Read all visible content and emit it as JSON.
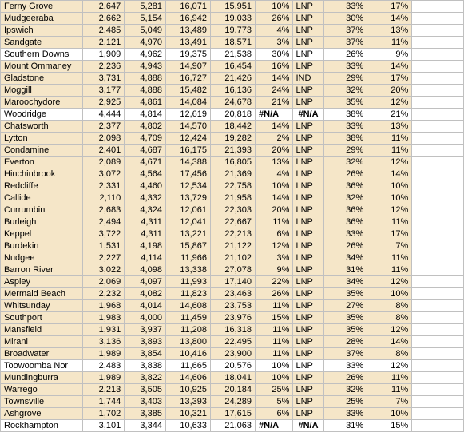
{
  "colors": {
    "beige": "#f5e6c8",
    "white": "#ffffff",
    "border": "#c0c0c0",
    "text": "#000000"
  },
  "columns": [
    "name",
    "v1",
    "v2",
    "v3",
    "v4",
    "pct1",
    "party",
    "pct2",
    "pct3"
  ],
  "col_align": [
    "left",
    "right",
    "right",
    "right",
    "right",
    "right",
    "left",
    "right",
    "right"
  ],
  "rows": [
    {
      "name": "Ferny Grove",
      "v1": "2,647",
      "v2": "5,281",
      "v3": "16,071",
      "v4": "15,951",
      "pct1": "10%",
      "party": "LNP",
      "pct2": "33%",
      "pct3": "17%",
      "cls": "beige"
    },
    {
      "name": "Mudgeeraba",
      "v1": "2,662",
      "v2": "5,154",
      "v3": "16,942",
      "v4": "19,033",
      "pct1": "26%",
      "party": "LNP",
      "pct2": "30%",
      "pct3": "14%",
      "cls": "beige"
    },
    {
      "name": "Ipswich",
      "v1": "2,485",
      "v2": "5,049",
      "v3": "13,489",
      "v4": "19,773",
      "pct1": "4%",
      "party": "LNP",
      "pct2": "37%",
      "pct3": "13%",
      "cls": "beige"
    },
    {
      "name": "Sandgate",
      "v1": "2,121",
      "v2": "4,970",
      "v3": "13,491",
      "v4": "18,571",
      "pct1": "3%",
      "party": "LNP",
      "pct2": "37%",
      "pct3": "11%",
      "cls": "beige"
    },
    {
      "name": "Southern Downs",
      "v1": "1,909",
      "v2": "4,962",
      "v3": "19,375",
      "v4": "21,538",
      "pct1": "30%",
      "party": "LNP",
      "pct2": "26%",
      "pct3": "9%",
      "cls": "white"
    },
    {
      "name": "Mount Ommaney",
      "v1": "2,236",
      "v2": "4,943",
      "v3": "14,907",
      "v4": "16,454",
      "pct1": "16%",
      "party": "LNP",
      "pct2": "33%",
      "pct3": "14%",
      "cls": "beige"
    },
    {
      "name": "Gladstone",
      "v1": "3,731",
      "v2": "4,888",
      "v3": "16,727",
      "v4": "21,426",
      "pct1": "14%",
      "party": "IND",
      "pct2": "29%",
      "pct3": "17%",
      "cls": "beige"
    },
    {
      "name": "Moggill",
      "v1": "3,177",
      "v2": "4,888",
      "v3": "15,482",
      "v4": "16,136",
      "pct1": "24%",
      "party": "LNP",
      "pct2": "32%",
      "pct3": "20%",
      "cls": "beige"
    },
    {
      "name": "Maroochydore",
      "v1": "2,925",
      "v2": "4,861",
      "v3": "14,084",
      "v4": "24,678",
      "pct1": "21%",
      "party": "LNP",
      "pct2": "35%",
      "pct3": "12%",
      "cls": "beige"
    },
    {
      "name": "Woodridge",
      "v1": "4,444",
      "v2": "4,814",
      "v3": "12,619",
      "v4": "20,818",
      "pct1": "#N/A",
      "party": "",
      "pct2": "#N/A",
      "pct3": "38%",
      "pct3b": "21%",
      "cls": "white",
      "na": true
    },
    {
      "name": "Chatsworth",
      "v1": "2,377",
      "v2": "4,802",
      "v3": "14,570",
      "v4": "18,442",
      "pct1": "14%",
      "party": "LNP",
      "pct2": "33%",
      "pct3": "13%",
      "cls": "beige"
    },
    {
      "name": "Lytton",
      "v1": "2,098",
      "v2": "4,709",
      "v3": "12,424",
      "v4": "19,282",
      "pct1": "2%",
      "party": "LNP",
      "pct2": "38%",
      "pct3": "11%",
      "cls": "beige"
    },
    {
      "name": "Condamine",
      "v1": "2,401",
      "v2": "4,687",
      "v3": "16,175",
      "v4": "21,393",
      "pct1": "20%",
      "party": "LNP",
      "pct2": "29%",
      "pct3": "11%",
      "cls": "beige"
    },
    {
      "name": "Everton",
      "v1": "2,089",
      "v2": "4,671",
      "v3": "14,388",
      "v4": "16,805",
      "pct1": "13%",
      "party": "LNP",
      "pct2": "32%",
      "pct3": "12%",
      "cls": "beige"
    },
    {
      "name": "Hinchinbrook",
      "v1": "3,072",
      "v2": "4,564",
      "v3": "17,456",
      "v4": "21,369",
      "pct1": "4%",
      "party": "LNP",
      "pct2": "26%",
      "pct3": "14%",
      "cls": "beige"
    },
    {
      "name": "Redcliffe",
      "v1": "2,331",
      "v2": "4,460",
      "v3": "12,534",
      "v4": "22,758",
      "pct1": "10%",
      "party": "LNP",
      "pct2": "36%",
      "pct3": "10%",
      "cls": "beige"
    },
    {
      "name": "Callide",
      "v1": "2,110",
      "v2": "4,332",
      "v3": "13,729",
      "v4": "21,958",
      "pct1": "14%",
      "party": "LNP",
      "pct2": "32%",
      "pct3": "10%",
      "cls": "beige"
    },
    {
      "name": "Currumbin",
      "v1": "2,683",
      "v2": "4,324",
      "v3": "12,061",
      "v4": "22,303",
      "pct1": "20%",
      "party": "LNP",
      "pct2": "36%",
      "pct3": "12%",
      "cls": "beige"
    },
    {
      "name": "Burleigh",
      "v1": "2,494",
      "v2": "4,311",
      "v3": "12,041",
      "v4": "22,667",
      "pct1": "11%",
      "party": "LNP",
      "pct2": "36%",
      "pct3": "11%",
      "cls": "beige"
    },
    {
      "name": "Keppel",
      "v1": "3,722",
      "v2": "4,311",
      "v3": "13,221",
      "v4": "22,213",
      "pct1": "6%",
      "party": "LNP",
      "pct2": "33%",
      "pct3": "17%",
      "cls": "beige"
    },
    {
      "name": "Burdekin",
      "v1": "1,531",
      "v2": "4,198",
      "v3": "15,867",
      "v4": "21,122",
      "pct1": "12%",
      "party": "LNP",
      "pct2": "26%",
      "pct3": "7%",
      "cls": "beige"
    },
    {
      "name": "Nudgee",
      "v1": "2,227",
      "v2": "4,114",
      "v3": "11,966",
      "v4": "21,102",
      "pct1": "3%",
      "party": "LNP",
      "pct2": "34%",
      "pct3": "11%",
      "cls": "beige"
    },
    {
      "name": "Barron River",
      "v1": "3,022",
      "v2": "4,098",
      "v3": "13,338",
      "v4": "27,078",
      "pct1": "9%",
      "party": "LNP",
      "pct2": "31%",
      "pct3": "11%",
      "cls": "beige"
    },
    {
      "name": "Aspley",
      "v1": "2,069",
      "v2": "4,097",
      "v3": "11,993",
      "v4": "17,140",
      "pct1": "22%",
      "party": "LNP",
      "pct2": "34%",
      "pct3": "12%",
      "cls": "beige"
    },
    {
      "name": "Mermaid Beach",
      "v1": "2,232",
      "v2": "4,082",
      "v3": "11,823",
      "v4": "23,463",
      "pct1": "26%",
      "party": "LNP",
      "pct2": "35%",
      "pct3": "10%",
      "cls": "beige"
    },
    {
      "name": "Whitsunday",
      "v1": "1,968",
      "v2": "4,014",
      "v3": "14,608",
      "v4": "23,753",
      "pct1": "11%",
      "party": "LNP",
      "pct2": "27%",
      "pct3": "8%",
      "cls": "beige"
    },
    {
      "name": "Southport",
      "v1": "1,983",
      "v2": "4,000",
      "v3": "11,459",
      "v4": "23,976",
      "pct1": "15%",
      "party": "LNP",
      "pct2": "35%",
      "pct3": "8%",
      "cls": "beige"
    },
    {
      "name": "Mansfield",
      "v1": "1,931",
      "v2": "3,937",
      "v3": "11,208",
      "v4": "16,318",
      "pct1": "11%",
      "party": "LNP",
      "pct2": "35%",
      "pct3": "12%",
      "cls": "beige"
    },
    {
      "name": "Mirani",
      "v1": "3,136",
      "v2": "3,893",
      "v3": "13,800",
      "v4": "22,495",
      "pct1": "11%",
      "party": "LNP",
      "pct2": "28%",
      "pct3": "14%",
      "cls": "beige"
    },
    {
      "name": "Broadwater",
      "v1": "1,989",
      "v2": "3,854",
      "v3": "10,416",
      "v4": "23,900",
      "pct1": "11%",
      "party": "LNP",
      "pct2": "37%",
      "pct3": "8%",
      "cls": "beige"
    },
    {
      "name": "Toowoomba Nor",
      "v1": "2,483",
      "v2": "3,838",
      "v3": "11,665",
      "v4": "20,576",
      "pct1": "10%",
      "party": "LNP",
      "pct2": "33%",
      "pct3": "12%",
      "cls": "white"
    },
    {
      "name": "Mundingburra",
      "v1": "1,989",
      "v2": "3,822",
      "v3": "14,606",
      "v4": "18,041",
      "pct1": "10%",
      "party": "LNP",
      "pct2": "26%",
      "pct3": "11%",
      "cls": "beige"
    },
    {
      "name": "Warrego",
      "v1": "2,213",
      "v2": "3,505",
      "v3": "10,925",
      "v4": "20,184",
      "pct1": "25%",
      "party": "LNP",
      "pct2": "32%",
      "pct3": "11%",
      "cls": "beige"
    },
    {
      "name": "Townsville",
      "v1": "1,744",
      "v2": "3,403",
      "v3": "13,393",
      "v4": "24,289",
      "pct1": "5%",
      "party": "LNP",
      "pct2": "25%",
      "pct3": "7%",
      "cls": "beige"
    },
    {
      "name": "Ashgrove",
      "v1": "1,702",
      "v2": "3,385",
      "v3": "10,321",
      "v4": "17,615",
      "pct1": "6%",
      "party": "LNP",
      "pct2": "33%",
      "pct3": "10%",
      "cls": "beige"
    },
    {
      "name": "Rockhampton",
      "v1": "3,101",
      "v2": "3,344",
      "v3": "10,633",
      "v4": "21,063",
      "pct1": "#N/A",
      "party": "",
      "pct2": "#N/A",
      "pct3": "31%",
      "pct3b": "15%",
      "cls": "white",
      "na": true
    }
  ]
}
